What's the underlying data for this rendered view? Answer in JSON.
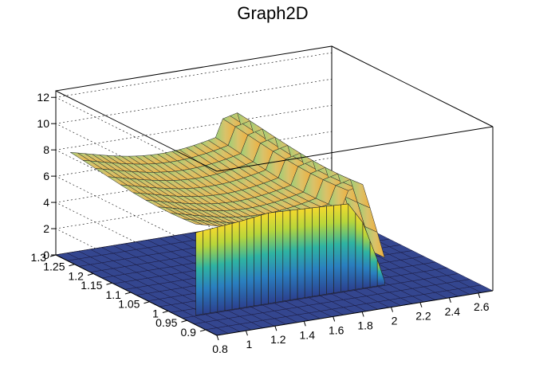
{
  "chart_data": {
    "type": "surface3d",
    "title": "Graph2D",
    "xlabel": "",
    "ylabel": "",
    "zlabel": "",
    "x_axis": {
      "range": [
        0.8,
        2.7
      ],
      "ticks": [
        0.8,
        1,
        1.2,
        1.4,
        1.6,
        1.8,
        2,
        2.2,
        2.4,
        2.6
      ],
      "tick_labels": [
        "0.8",
        "1",
        "1.2",
        "1.4",
        "1.6",
        "1.8",
        "2",
        "2.2",
        "2.4",
        "2.6"
      ]
    },
    "y_axis": {
      "range": [
        0.87,
        1.3
      ],
      "ticks": [
        0.9,
        0.95,
        1,
        1.05,
        1.1,
        1.15,
        1.2,
        1.25,
        1.3
      ],
      "tick_labels": [
        "0.9",
        "0.95",
        "1",
        "1.05",
        "1.1",
        "1.15",
        "1.2",
        "1.25",
        "1.3"
      ]
    },
    "z_axis": {
      "range": [
        0,
        12.5
      ],
      "ticks": [
        0,
        2,
        4,
        6,
        8,
        10,
        12
      ],
      "tick_labels": [
        "0",
        "2",
        "4",
        "6",
        "8",
        "10",
        "12"
      ]
    },
    "grid": true,
    "palette": "viridis-like",
    "surface": {
      "description_points_x": [
        0.9,
        1.0,
        1.2,
        1.4,
        1.6,
        1.8,
        1.95,
        2.05,
        2.15,
        2.2
      ],
      "front_edge_z": [
        6.3,
        6.4,
        6.6,
        6.9,
        6.8,
        6.7,
        6.6,
        5.0,
        2.0,
        0.3
      ],
      "plateau_z_range": [
        6.5,
        8.5
      ],
      "peak_z": 9.2,
      "floor_z": 0
    },
    "colors": {
      "low": "#3b4fa2",
      "mid": "#2fa8a0",
      "high": "#f9e21e",
      "top": "#f2cf5a"
    }
  }
}
